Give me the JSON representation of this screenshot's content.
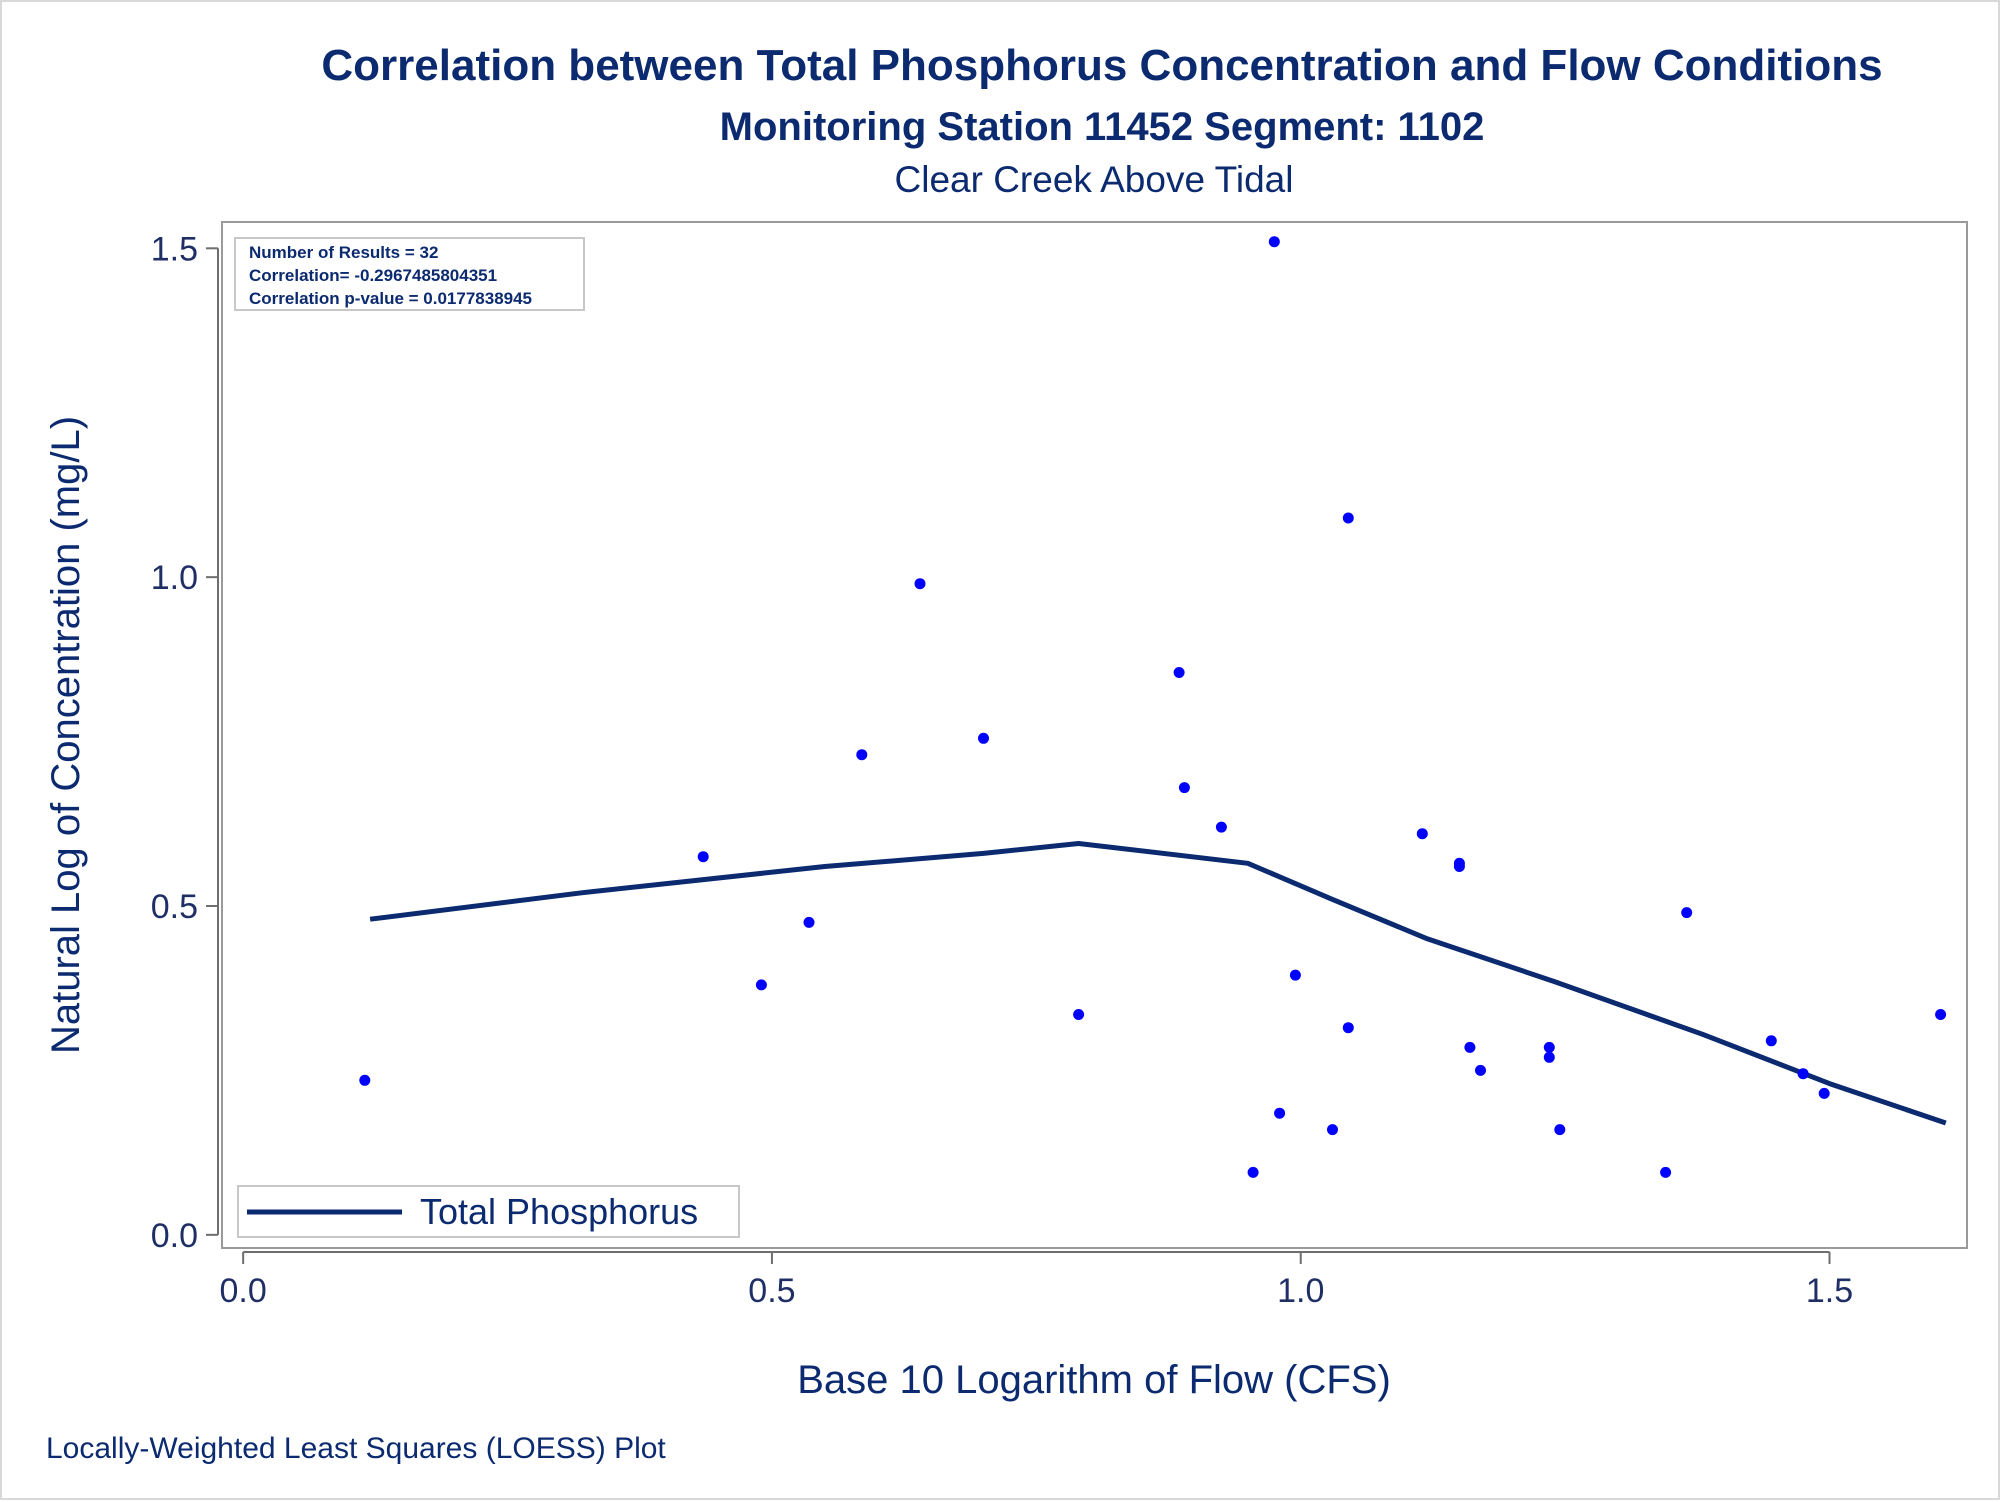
{
  "chart_data": {
    "type": "scatter",
    "title": "Correlation between Total Phosphorus Concentration and Flow Conditions",
    "subtitle": "Monitoring Station 11452 Segment: 1102",
    "subtitle2": "Clear Creek Above Tidal",
    "xlabel": "Base 10 Logarithm of Flow (CFS)",
    "ylabel": "Natural Log of Concentration (mg/L)",
    "footnote": "Locally-Weighted Least Squares (LOESS) Plot",
    "xlim": [
      -0.02,
      1.63
    ],
    "ylim": [
      -0.02,
      1.54
    ],
    "x_ticks": [
      {
        "value": 0.0,
        "label": "0.0"
      },
      {
        "value": 0.5,
        "label": "0.5"
      },
      {
        "value": 1.0,
        "label": "1.0"
      },
      {
        "value": 1.5,
        "label": "1.5"
      }
    ],
    "y_ticks": [
      {
        "value": 0.0,
        "label": "0.0"
      },
      {
        "value": 0.5,
        "label": "0.5"
      },
      {
        "value": 1.0,
        "label": "1.0"
      },
      {
        "value": 1.5,
        "label": "1.5"
      }
    ],
    "grid": false,
    "legend_position": "bottom-left",
    "stats": [
      "Number of Results = 32",
      "Correlation= -0.2967485804351",
      "Correlation p-value = 0.0177838945"
    ],
    "series": [
      {
        "name": "Total Phosphorus",
        "type": "line",
        "color": "#0b2a6f",
        "points": [
          [
            0.12,
            0.48
          ],
          [
            0.32,
            0.52
          ],
          [
            0.55,
            0.56
          ],
          [
            0.7,
            0.58
          ],
          [
            0.79,
            0.595
          ],
          [
            0.95,
            0.565
          ],
          [
            1.03,
            0.51
          ],
          [
            1.12,
            0.45
          ],
          [
            1.24,
            0.385
          ],
          [
            1.38,
            0.305
          ],
          [
            1.5,
            0.23
          ],
          [
            1.61,
            0.17
          ]
        ]
      },
      {
        "name": "",
        "type": "scatter",
        "color": "#0000ff",
        "points": [
          [
            0.115,
            0.235
          ],
          [
            0.435,
            0.575
          ],
          [
            0.49,
            0.38
          ],
          [
            0.535,
            0.475
          ],
          [
            0.585,
            0.73
          ],
          [
            0.64,
            0.99
          ],
          [
            0.7,
            0.755
          ],
          [
            0.79,
            0.335
          ],
          [
            0.885,
            0.855
          ],
          [
            0.89,
            0.68
          ],
          [
            0.925,
            0.62
          ],
          [
            0.955,
            0.095
          ],
          [
            0.975,
            1.51
          ],
          [
            0.98,
            0.185
          ],
          [
            0.995,
            0.395
          ],
          [
            1.03,
            0.16
          ],
          [
            1.045,
            1.09
          ],
          [
            1.045,
            0.315
          ],
          [
            1.115,
            0.61
          ],
          [
            1.15,
            0.565
          ],
          [
            1.15,
            0.56
          ],
          [
            1.16,
            0.285
          ],
          [
            1.17,
            0.25
          ],
          [
            1.235,
            0.285
          ],
          [
            1.235,
            0.27
          ],
          [
            1.245,
            0.16
          ],
          [
            1.345,
            0.095
          ],
          [
            1.365,
            0.49
          ],
          [
            1.445,
            0.295
          ],
          [
            1.475,
            0.245
          ],
          [
            1.495,
            0.215
          ],
          [
            1.605,
            0.335
          ]
        ]
      }
    ]
  }
}
